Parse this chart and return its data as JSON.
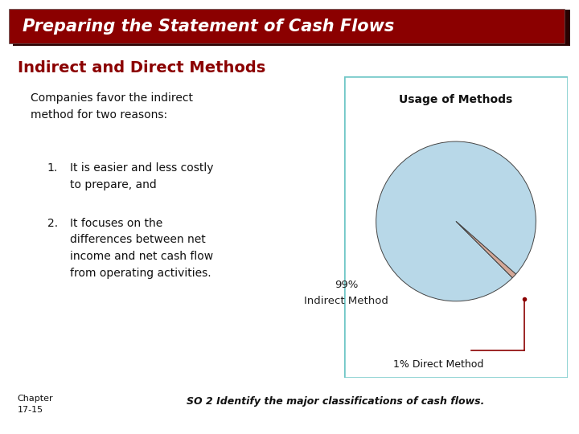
{
  "title": "Preparing the Statement of Cash Flows",
  "title_bg": "#8B0000",
  "title_shadow": "#3a0000",
  "title_color": "#FFFFFF",
  "subtitle": "Indirect and Direct Methods",
  "subtitle_color": "#8B0000",
  "body_bg": "#FFFFFF",
  "para_text": "Companies favor the indirect\nmethod for two reasons:",
  "item1_num": "1.",
  "item1": "It is easier and less costly\nto prepare, and",
  "item2_num": "2.",
  "item2": "It focuses on the\ndifferences between net\nincome and net cash flow\nfrom operating activities.",
  "chart_title": "Usage of Methods",
  "pie_values": [
    99,
    1
  ],
  "pie_colors": [
    "#B8D8E8",
    "#D4A898"
  ],
  "pie_border_color": "#6EC6C6",
  "indirect_label_line1": "99%",
  "indirect_label_line2": "Indirect Method",
  "direct_label": "1% Direct Method",
  "chapter_text": "Chapter\n17-15",
  "footer_text": "SO 2 Identify the major classifications of cash flows.",
  "font_color": "#111111",
  "dark_red": "#8B0000"
}
